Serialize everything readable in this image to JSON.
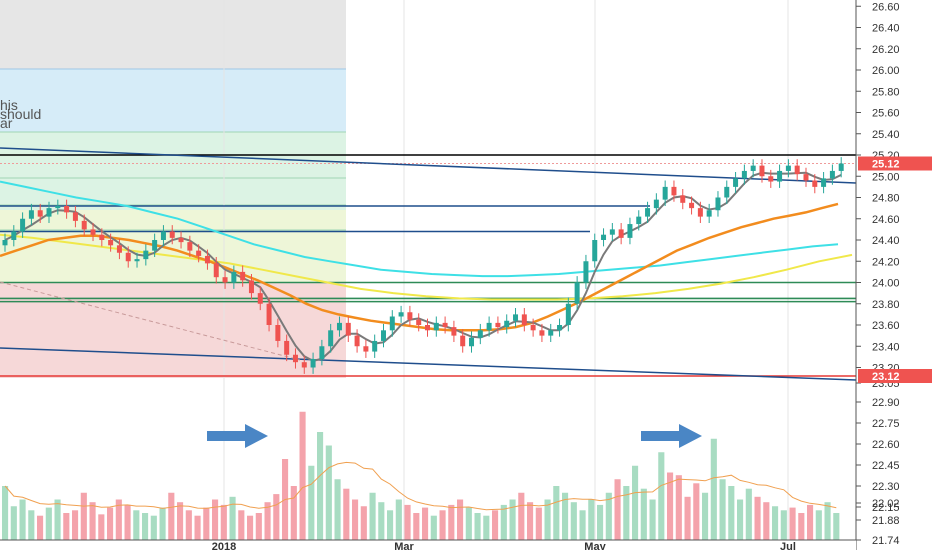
{
  "chart_data": {
    "type": "candlestick",
    "price_axis": {
      "ticks": [
        "26.60",
        "26.40",
        "26.20",
        "26.00",
        "25.80",
        "25.60",
        "25.40",
        "25.20",
        "25.00",
        "24.80",
        "24.60",
        "24.40",
        "24.20",
        "24.00",
        "23.80",
        "23.60",
        "23.40",
        "23.20",
        "23.05"
      ],
      "range": [
        23.05,
        26.7
      ]
    },
    "volume_axis": {
      "ticks": [
        "22.90",
        "22.75",
        "22.60",
        "22.45",
        "22.30",
        "22.15",
        "22.02",
        "21.88",
        "21.74"
      ]
    },
    "x_axis": {
      "ticks": [
        "2018",
        "Mar",
        "May",
        "Jul"
      ]
    },
    "price_tags": [
      {
        "label": "25.12",
        "value": 25.12,
        "color": "#ef5350"
      },
      {
        "label": "23.12",
        "value": 23.12,
        "color": "#ef5350"
      }
    ],
    "annotation_text": [
      "his",
      "should",
      "ar"
    ],
    "horizontal_levels": [
      {
        "value": 25.2,
        "color": "#000000"
      },
      {
        "value": 25.12,
        "color": "#ef9a9a"
      },
      {
        "value": 24.72,
        "color": "#1f4e8c"
      },
      {
        "value": 24.48,
        "color": "#1f4e8c"
      },
      {
        "value": 24.0,
        "color": "#2e8b57"
      },
      {
        "value": 23.85,
        "color": "#2e8b57"
      },
      {
        "value": 23.82,
        "color": "#2e8b57"
      },
      {
        "value": 23.12,
        "color": "#e53935"
      }
    ],
    "colors": {
      "up": "#26a69a",
      "down": "#ef5350",
      "ma_short": "#7a7a7a",
      "ma_mid": "#f28c1e",
      "ma_long_cyan": "#3ee0e6",
      "ma_long_yellow": "#f0e84a",
      "trend_line": "#1f4e8c",
      "volume_ma": "#f0a050",
      "arrow": "#4a86c5"
    },
    "series": [
      {
        "name": "close",
        "values": [
          24.4,
          24.48,
          24.6,
          24.68,
          24.62,
          24.7,
          24.72,
          24.66,
          24.58,
          24.5,
          24.45,
          24.4,
          24.35,
          24.28,
          24.2,
          24.22,
          24.3,
          24.4,
          24.48,
          24.42,
          24.38,
          24.3,
          24.25,
          24.18,
          24.05,
          24.0,
          24.1,
          24.02,
          23.9,
          23.8,
          23.6,
          23.45,
          23.32,
          23.25,
          23.2,
          23.28,
          23.4,
          23.55,
          23.62,
          23.5,
          23.4,
          23.35,
          23.45,
          23.55,
          23.68,
          23.72,
          23.65,
          23.6,
          23.55,
          23.62,
          23.58,
          23.5,
          23.4,
          23.48,
          23.55,
          23.62,
          23.58,
          23.64,
          23.7,
          23.6,
          23.55,
          23.5,
          23.55,
          23.6,
          23.8,
          24.0,
          24.2,
          24.4,
          24.45,
          24.5,
          24.42,
          24.55,
          24.62,
          24.7,
          24.78,
          24.9,
          24.82,
          24.75,
          24.7,
          24.62,
          24.68,
          24.8,
          24.9,
          24.98,
          25.05,
          25.1,
          25.0,
          24.95,
          25.05,
          25.1,
          25.02,
          24.96,
          24.9,
          24.98,
          25.05,
          25.12
        ]
      },
      {
        "name": "ma_mid",
        "values": [
          24.25,
          24.3,
          24.35,
          24.4,
          24.42,
          24.44,
          24.44,
          24.42,
          24.4,
          24.37,
          24.34,
          24.3,
          24.25,
          24.2,
          24.14,
          24.08,
          24.02,
          23.95,
          23.88,
          23.8,
          23.74,
          23.7,
          23.67,
          23.64,
          23.62,
          23.6,
          23.58,
          23.56,
          23.55,
          23.55,
          23.55,
          23.56,
          23.58,
          23.62,
          23.68,
          23.75,
          23.82,
          23.9,
          23.98,
          24.06,
          24.14,
          24.22,
          24.3,
          24.36,
          24.42,
          24.47,
          24.52,
          24.56,
          24.6,
          24.63,
          24.66,
          24.7,
          24.74
        ]
      },
      {
        "name": "ma_cyan",
        "values": [
          24.95,
          24.9,
          24.85,
          24.8,
          24.76,
          24.72,
          24.66,
          24.6,
          24.52,
          24.44,
          24.36,
          24.3,
          24.24,
          24.2,
          24.16,
          24.12,
          24.1,
          24.08,
          24.07,
          24.06,
          24.06,
          24.07,
          24.08,
          24.1,
          24.12,
          24.14,
          24.16,
          24.19,
          24.22,
          24.25,
          24.28,
          24.31,
          24.34,
          24.36
        ]
      },
      {
        "name": "ma_yellow",
        "values": [
          24.45,
          24.42,
          24.38,
          24.34,
          24.3,
          24.26,
          24.22,
          24.18,
          24.12,
          24.06,
          24.0,
          23.94,
          23.9,
          23.87,
          23.85,
          23.84,
          23.84,
          23.84,
          23.85,
          23.87,
          23.9,
          23.94,
          23.99,
          24.05,
          24.12,
          24.2,
          24.26
        ]
      },
      {
        "name": "volume",
        "values": [
          0.4,
          0.25,
          0.3,
          0.22,
          0.18,
          0.24,
          0.3,
          0.2,
          0.22,
          0.35,
          0.28,
          0.19,
          0.24,
          0.3,
          0.26,
          0.22,
          0.2,
          0.18,
          0.24,
          0.35,
          0.28,
          0.22,
          0.18,
          0.24,
          0.3,
          0.26,
          0.32,
          0.22,
          0.18,
          0.2,
          0.28,
          0.34,
          0.6,
          0.4,
          0.95,
          0.55,
          0.8,
          0.7,
          0.45,
          0.38,
          0.3,
          0.25,
          0.35,
          0.28,
          0.22,
          0.3,
          0.26,
          0.2,
          0.24,
          0.18,
          0.22,
          0.26,
          0.3,
          0.24,
          0.2,
          0.18,
          0.22,
          0.26,
          0.3,
          0.35,
          0.28,
          0.24,
          0.3,
          0.4,
          0.35,
          0.28,
          0.22,
          0.3,
          0.26,
          0.35,
          0.45,
          0.4,
          0.55,
          0.38,
          0.3,
          0.65,
          0.5,
          0.48,
          0.32,
          0.42,
          0.35,
          0.75,
          0.45,
          0.4,
          0.3,
          0.38,
          0.32,
          0.28,
          0.25,
          0.22,
          0.24,
          0.2,
          0.26,
          0.22,
          0.28,
          0.2
        ]
      }
    ]
  }
}
